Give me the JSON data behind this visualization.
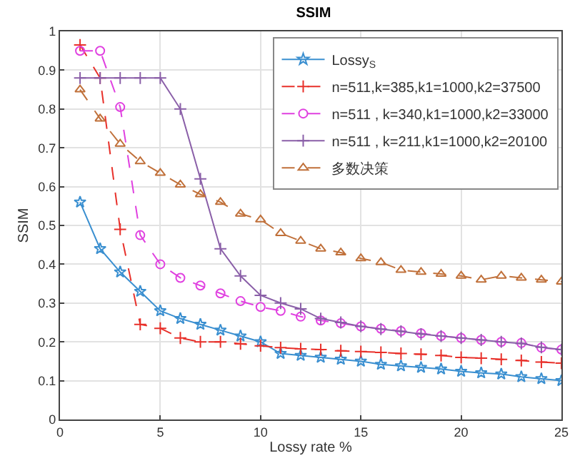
{
  "chart_data": {
    "type": "line",
    "title": "SSIM",
    "xlabel": "Lossy rate %",
    "ylabel": "SSIM",
    "x": [
      1,
      2,
      3,
      4,
      5,
      6,
      7,
      8,
      9,
      10,
      11,
      12,
      13,
      14,
      15,
      16,
      17,
      18,
      19,
      20,
      21,
      22,
      23,
      24,
      25
    ],
    "series": [
      {
        "name": "Lossy$_{S}$",
        "color": "#3a8fd0",
        "marker": "star",
        "line_style": "solid",
        "values": [
          0.56,
          0.44,
          0.38,
          0.33,
          0.28,
          0.26,
          0.245,
          0.23,
          0.215,
          0.2,
          0.17,
          0.165,
          0.16,
          0.155,
          0.15,
          0.142,
          0.138,
          0.134,
          0.13,
          0.124,
          0.12,
          0.117,
          0.11,
          0.105,
          0.1
        ]
      },
      {
        "name": "n=511,k=385,k1=1000,k2=37500",
        "color": "#e8302a",
        "marker": "cross",
        "line_style": "dashed",
        "values": [
          0.965,
          0.88,
          0.49,
          0.245,
          0.235,
          0.21,
          0.2,
          0.2,
          0.195,
          0.19,
          0.185,
          0.182,
          0.18,
          0.177,
          0.175,
          0.173,
          0.17,
          0.168,
          0.165,
          0.16,
          0.158,
          0.155,
          0.152,
          0.148,
          0.145
        ]
      },
      {
        "name": "n=511 , k=340,k1=1000,k2=33000",
        "color": "#e040e0",
        "marker": "circle",
        "line_style": "dashed",
        "values": [
          0.95,
          0.95,
          0.805,
          0.475,
          0.4,
          0.365,
          0.345,
          0.325,
          0.305,
          0.29,
          0.28,
          0.265,
          0.255,
          0.248,
          0.24,
          0.234,
          0.228,
          0.222,
          0.215,
          0.21,
          0.205,
          0.2,
          0.197,
          0.185,
          0.18
        ]
      },
      {
        "name": "n=511 , k=211,k1=1000,k2=20100",
        "color": "#8a5fa8",
        "marker": "cross",
        "line_style": "solid",
        "values": [
          0.88,
          0.88,
          0.88,
          0.88,
          0.88,
          0.8,
          0.62,
          0.44,
          0.37,
          0.32,
          0.3,
          0.285,
          0.26,
          0.25,
          0.24,
          0.233,
          0.227,
          0.22,
          0.215,
          0.21,
          0.205,
          0.2,
          0.196,
          0.186,
          0.18
        ]
      },
      {
        "name": "多数决策",
        "color": "#c0703a",
        "marker": "triangle",
        "line_style": "dashed",
        "values": [
          0.85,
          0.775,
          0.71,
          0.665,
          0.635,
          0.605,
          0.58,
          0.56,
          0.53,
          0.515,
          0.48,
          0.46,
          0.44,
          0.43,
          0.415,
          0.405,
          0.385,
          0.38,
          0.375,
          0.37,
          0.36,
          0.37,
          0.365,
          0.36,
          0.355
        ]
      }
    ],
    "xlim": [
      0,
      25
    ],
    "xticks": [
      0,
      5,
      10,
      15,
      20,
      25
    ],
    "ylim": [
      0,
      1
    ],
    "yticks": [
      0,
      0.1,
      0.2,
      0.3,
      0.4,
      0.5,
      0.6,
      0.7,
      0.8,
      0.9,
      1
    ],
    "grid": true,
    "legend": "right"
  }
}
